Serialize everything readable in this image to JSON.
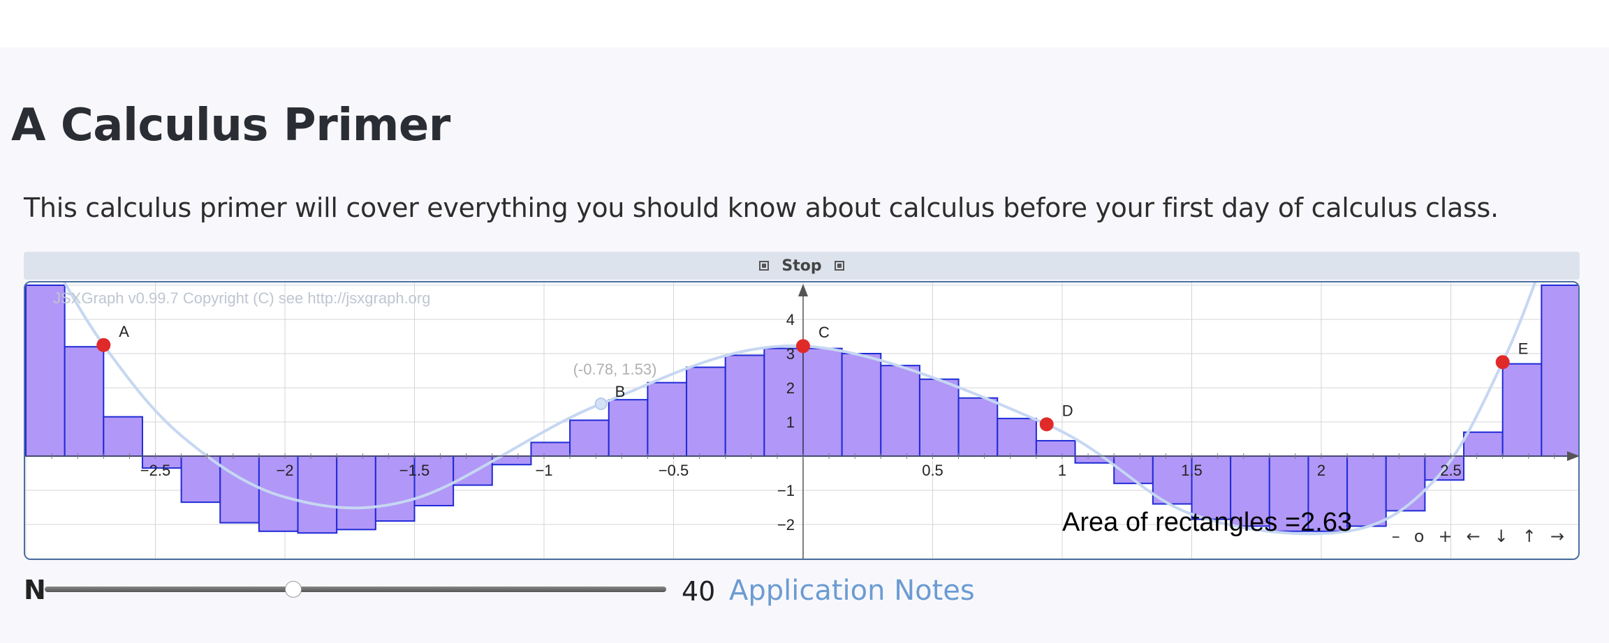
{
  "page": {
    "title": "A Calculus Primer",
    "intro": "This calculus primer will cover everything you should know about calculus before your first day of calculus class."
  },
  "controls": {
    "stop_label": "Stop"
  },
  "board": {
    "copyright": "JSXGraph v0.99.7 Copyright (C) see http://jsxgraph.org",
    "area_label": "Area of rectangles =2.63",
    "nav": [
      "–",
      "o",
      "+",
      "←",
      "↓",
      "↑",
      "→"
    ],
    "point_readout": "(-0.78, 1.53)"
  },
  "slider": {
    "label": "N",
    "value": "40",
    "min": 1,
    "max": 100,
    "fraction": 0.4
  },
  "link": {
    "label": "Application Notes"
  },
  "chart_data": {
    "type": "area",
    "title": "",
    "xlabel": "",
    "ylabel": "",
    "xlim": [
      -3.0,
      3.0
    ],
    "ylim": [
      -3.0,
      4.8
    ],
    "x_ticks": [
      "−2.5",
      "−2",
      "−1.5",
      "−1",
      "−0.5",
      "0.5",
      "1",
      "1.5",
      "2",
      "2.5"
    ],
    "x_tick_values": [
      -2.5,
      -2,
      -1.5,
      -1,
      -0.5,
      0.5,
      1,
      1.5,
      2,
      2.5
    ],
    "y_ticks": [
      "4",
      "3",
      "2",
      "1",
      "−1",
      "−2"
    ],
    "y_tick_values": [
      4,
      3,
      2,
      1,
      -1,
      -2
    ],
    "grid": true,
    "colors": {
      "rect_fill": "#b197f7",
      "rect_stroke": "#1f2bd6",
      "curve": "#c6d7f2",
      "point": "#e02a2a"
    },
    "series": [
      {
        "type": "bar",
        "bar_width": 0.15,
        "x_left": [
          -3.0,
          -2.85,
          -2.7,
          -2.55,
          -2.4,
          -2.25,
          -2.1,
          -1.95,
          -1.8,
          -1.65,
          -1.5,
          -1.35,
          -1.2,
          -1.05,
          -0.9,
          -0.75,
          -0.6,
          -0.45,
          -0.3,
          -0.15,
          0.0,
          0.15,
          0.3,
          0.45,
          0.6,
          0.75,
          0.9,
          1.05,
          1.2,
          1.35,
          1.5,
          1.65,
          1.8,
          1.95,
          2.1,
          2.25,
          2.4,
          2.55,
          2.7,
          2.85
        ],
        "values": [
          5.0,
          3.2,
          1.15,
          -0.35,
          -1.35,
          -1.95,
          -2.2,
          -2.25,
          -2.15,
          -1.9,
          -1.45,
          -0.85,
          -0.25,
          0.4,
          1.05,
          1.65,
          2.15,
          2.6,
          2.95,
          3.15,
          3.15,
          3.0,
          2.65,
          2.25,
          1.7,
          1.1,
          0.45,
          -0.2,
          -0.8,
          -1.4,
          -1.85,
          -2.05,
          -2.2,
          -2.2,
          -2.05,
          -1.6,
          -0.7,
          0.7,
          2.7,
          5.0
        ]
      }
    ],
    "points": [
      {
        "label": "A",
        "x": -2.7,
        "y": 3.25
      },
      {
        "label": "C",
        "x": 0.0,
        "y": 3.22
      },
      {
        "label": "D",
        "x": 0.94,
        "y": 0.93
      },
      {
        "label": "E",
        "x": 2.7,
        "y": 2.75
      },
      {
        "label": "B",
        "x": -0.78,
        "y": 1.53
      }
    ]
  }
}
